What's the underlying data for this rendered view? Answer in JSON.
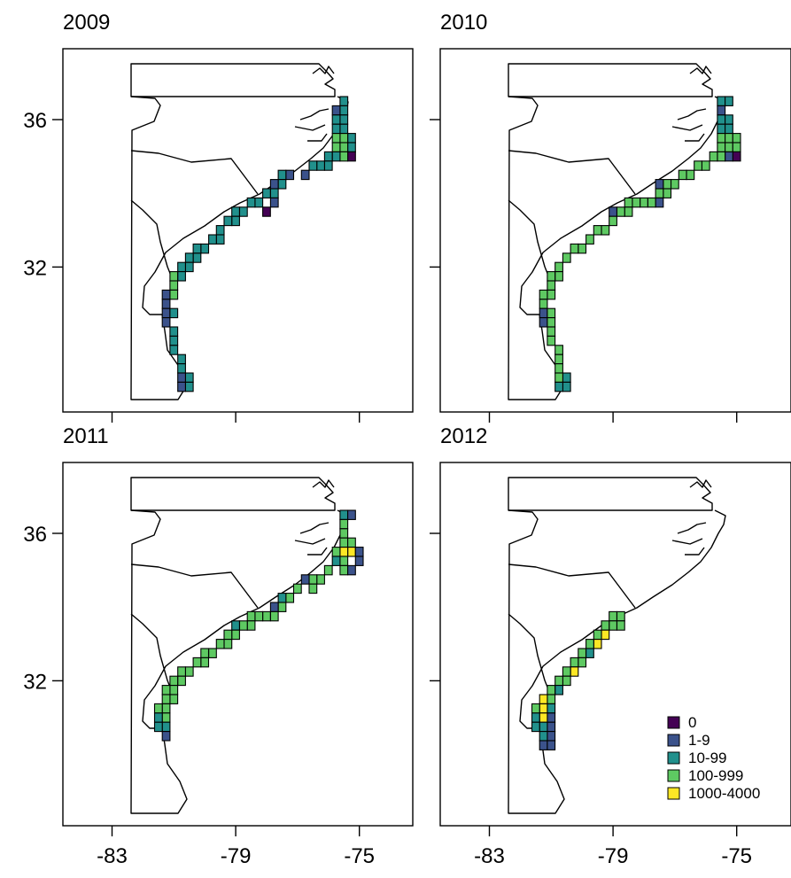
{
  "figure": {
    "panels": [
      {
        "title": "2009"
      },
      {
        "title": "2010"
      },
      {
        "title": "2011"
      },
      {
        "title": "2012"
      }
    ],
    "y_tick_labels": [
      "36",
      "32"
    ],
    "x_tick_labels": [
      "-83",
      "-79",
      "-75"
    ],
    "legend": {
      "items": [
        {
          "label": "0",
          "color": "#440154"
        },
        {
          "label": "1-9",
          "color": "#3b528b"
        },
        {
          "label": "10-99",
          "color": "#21908c"
        },
        {
          "label": "100-999",
          "color": "#5ec962"
        },
        {
          "label": "1000-4000",
          "color": "#fde725"
        }
      ]
    }
  },
  "chart_data": {
    "type": "heatmap",
    "description_units": "grid cells in degrees longitude (x) / latitude (y); value is abundance category index into legend",
    "xlim": [
      -84.5,
      -74
    ],
    "ylim": [
      28,
      38
    ],
    "x_ticks": [
      -83,
      -79,
      -75
    ],
    "y_ticks": [
      36,
      32
    ],
    "categories": [
      "0",
      "1-9",
      "10-99",
      "100-999",
      "1000-4000"
    ],
    "panels": [
      {
        "title": "2009",
        "cells": [
          [
            -75.5,
            36.5,
            2
          ],
          [
            -75.5,
            36.25,
            2
          ],
          [
            -75.75,
            36.25,
            1
          ],
          [
            -75.5,
            36,
            2
          ],
          [
            -75.75,
            36,
            2
          ],
          [
            -75.5,
            35.75,
            2
          ],
          [
            -75.75,
            35.75,
            2
          ],
          [
            -75.25,
            35.5,
            2
          ],
          [
            -75.5,
            35.5,
            3
          ],
          [
            -75.75,
            35.5,
            3
          ],
          [
            -75.25,
            35.25,
            2
          ],
          [
            -75.5,
            35.25,
            3
          ],
          [
            -75.75,
            35.25,
            3
          ],
          [
            -75.25,
            35,
            0
          ],
          [
            -75.5,
            35,
            3
          ],
          [
            -75.75,
            35,
            2
          ],
          [
            -76,
            35,
            2
          ],
          [
            -76,
            34.75,
            2
          ],
          [
            -76.25,
            34.75,
            2
          ],
          [
            -76.5,
            34.75,
            2
          ],
          [
            -76.75,
            34.5,
            1
          ],
          [
            -77.25,
            34.5,
            1
          ],
          [
            -77.5,
            34.5,
            2
          ],
          [
            -77.5,
            34.25,
            2
          ],
          [
            -77.75,
            34.25,
            1
          ],
          [
            -77.75,
            34,
            2
          ],
          [
            -78,
            34,
            2
          ],
          [
            -77.75,
            33.75,
            1
          ],
          [
            -78,
            33.5,
            0
          ],
          [
            -78.25,
            33.75,
            2
          ],
          [
            -78.5,
            33.75,
            2
          ],
          [
            -78.75,
            33.5,
            2
          ],
          [
            -79,
            33.5,
            2
          ],
          [
            -79,
            33.25,
            2
          ],
          [
            -79.25,
            33.25,
            2
          ],
          [
            -79.5,
            33,
            2
          ],
          [
            -79.5,
            32.75,
            2
          ],
          [
            -79.75,
            32.75,
            2
          ],
          [
            -80,
            32.5,
            2
          ],
          [
            -80.25,
            32.5,
            2
          ],
          [
            -80.25,
            32.25,
            2
          ],
          [
            -80.5,
            32.25,
            2
          ],
          [
            -80.5,
            32,
            2
          ],
          [
            -80.75,
            32,
            2
          ],
          [
            -80.75,
            31.75,
            2
          ],
          [
            -81,
            31.75,
            3
          ],
          [
            -81,
            31.5,
            3
          ],
          [
            -81,
            31.25,
            3
          ],
          [
            -81.25,
            31.25,
            1
          ],
          [
            -81.25,
            31,
            1
          ],
          [
            -81.25,
            30.75,
            1
          ],
          [
            -81,
            30.75,
            2
          ],
          [
            -81.25,
            30.5,
            1
          ],
          [
            -81,
            30.25,
            2
          ],
          [
            -81,
            30,
            2
          ],
          [
            -81,
            29.75,
            2
          ],
          [
            -80.75,
            29.5,
            2
          ],
          [
            -80.75,
            29.25,
            2
          ],
          [
            -80.5,
            29,
            2
          ],
          [
            -80.75,
            29,
            1
          ],
          [
            -80.5,
            28.75,
            2
          ],
          [
            -80.75,
            28.75,
            1
          ]
        ]
      },
      {
        "title": "2010",
        "cells": [
          [
            -75.5,
            36.5,
            2
          ],
          [
            -75.25,
            36.5,
            2
          ],
          [
            -75.5,
            36.25,
            1
          ],
          [
            -75.5,
            36,
            2
          ],
          [
            -75.25,
            36,
            2
          ],
          [
            -75.5,
            35.75,
            2
          ],
          [
            -75.25,
            35.75,
            2
          ],
          [
            -75.5,
            35.5,
            3
          ],
          [
            -75.25,
            35.5,
            3
          ],
          [
            -75,
            35.5,
            3
          ],
          [
            -75.5,
            35.25,
            3
          ],
          [
            -75.25,
            35.25,
            3
          ],
          [
            -75,
            35.25,
            3
          ],
          [
            -75,
            35,
            0
          ],
          [
            -75.25,
            35,
            1
          ],
          [
            -75.5,
            35,
            3
          ],
          [
            -75.75,
            35,
            3
          ],
          [
            -76,
            34.75,
            3
          ],
          [
            -76.25,
            34.75,
            3
          ],
          [
            -76.5,
            34.5,
            3
          ],
          [
            -76.75,
            34.5,
            3
          ],
          [
            -77,
            34.25,
            3
          ],
          [
            -77.25,
            34.25,
            3
          ],
          [
            -77.5,
            34.25,
            1
          ],
          [
            -77.25,
            34,
            3
          ],
          [
            -77.5,
            34,
            3
          ],
          [
            -77.5,
            33.75,
            1
          ],
          [
            -77.75,
            33.75,
            3
          ],
          [
            -78,
            33.75,
            3
          ],
          [
            -78.25,
            33.75,
            3
          ],
          [
            -78.5,
            33.75,
            3
          ],
          [
            -78.5,
            33.5,
            3
          ],
          [
            -78.75,
            33.5,
            3
          ],
          [
            -79,
            33.5,
            1
          ],
          [
            -79,
            33.25,
            3
          ],
          [
            -79.25,
            33,
            3
          ],
          [
            -79.5,
            33,
            3
          ],
          [
            -79.75,
            32.75,
            3
          ],
          [
            -80,
            32.5,
            3
          ],
          [
            -80.25,
            32.5,
            3
          ],
          [
            -80.5,
            32.25,
            3
          ],
          [
            -80.75,
            32,
            3
          ],
          [
            -80.75,
            31.75,
            3
          ],
          [
            -81,
            31.75,
            3
          ],
          [
            -81,
            31.5,
            3
          ],
          [
            -81,
            31.25,
            3
          ],
          [
            -81.25,
            31.25,
            3
          ],
          [
            -81.25,
            31,
            3
          ],
          [
            -81.25,
            30.75,
            1
          ],
          [
            -81,
            30.75,
            3
          ],
          [
            -81.25,
            30.5,
            1
          ],
          [
            -81,
            30.5,
            3
          ],
          [
            -81,
            30.25,
            3
          ],
          [
            -81,
            30,
            3
          ],
          [
            -80.75,
            29.75,
            3
          ],
          [
            -80.75,
            29.5,
            3
          ],
          [
            -80.75,
            29.25,
            3
          ],
          [
            -80.5,
            29,
            2
          ],
          [
            -80.75,
            29,
            3
          ],
          [
            -80.5,
            28.75,
            2
          ],
          [
            -80.75,
            28.75,
            2
          ]
        ]
      },
      {
        "title": "2011",
        "cells": [
          [
            -75.5,
            36.5,
            2
          ],
          [
            -75.25,
            36.5,
            1
          ],
          [
            -75.5,
            36.25,
            3
          ],
          [
            -75.5,
            36,
            3
          ],
          [
            -75.5,
            35.75,
            3
          ],
          [
            -75.25,
            35.75,
            3
          ],
          [
            -75.25,
            35.5,
            4
          ],
          [
            -75,
            35.5,
            1
          ],
          [
            -75.5,
            35.5,
            4
          ],
          [
            -75.75,
            35.5,
            3
          ],
          [
            -75.5,
            35.25,
            3
          ],
          [
            -75.75,
            35.25,
            2
          ],
          [
            -75,
            35.25,
            1
          ],
          [
            -75.5,
            35,
            3
          ],
          [
            -75.25,
            35,
            1
          ],
          [
            -76,
            35,
            3
          ],
          [
            -76.25,
            34.75,
            3
          ],
          [
            -76.5,
            34.75,
            3
          ],
          [
            -76.75,
            34.75,
            1
          ],
          [
            -76.5,
            34.5,
            3
          ],
          [
            -77,
            34.5,
            3
          ],
          [
            -77.25,
            34.25,
            3
          ],
          [
            -77.5,
            34.25,
            2
          ],
          [
            -77.5,
            34,
            3
          ],
          [
            -77.75,
            34,
            1
          ],
          [
            -77.75,
            33.75,
            3
          ],
          [
            -78,
            33.75,
            3
          ],
          [
            -78.25,
            33.75,
            3
          ],
          [
            -78.5,
            33.75,
            3
          ],
          [
            -78.5,
            33.5,
            3
          ],
          [
            -78.75,
            33.5,
            3
          ],
          [
            -79,
            33.5,
            2
          ],
          [
            -79,
            33.25,
            3
          ],
          [
            -79.25,
            33.25,
            3
          ],
          [
            -79.25,
            33,
            3
          ],
          [
            -79.5,
            33,
            3
          ],
          [
            -79.75,
            32.75,
            3
          ],
          [
            -80,
            32.75,
            3
          ],
          [
            -80,
            32.5,
            3
          ],
          [
            -80.25,
            32.5,
            3
          ],
          [
            -80.5,
            32.25,
            3
          ],
          [
            -80.75,
            32.25,
            3
          ],
          [
            -80.75,
            32,
            3
          ],
          [
            -81,
            32,
            3
          ],
          [
            -81,
            31.75,
            3
          ],
          [
            -81.25,
            31.75,
            3
          ],
          [
            -81,
            31.5,
            3
          ],
          [
            -81.25,
            31.5,
            3
          ],
          [
            -81.25,
            31.25,
            3
          ],
          [
            -81.5,
            31.25,
            3
          ],
          [
            -81.25,
            31,
            3
          ],
          [
            -81.5,
            31,
            2
          ],
          [
            -81.25,
            30.75,
            2
          ],
          [
            -81.5,
            30.75,
            2
          ],
          [
            -81.25,
            30.5,
            1
          ]
        ]
      },
      {
        "title": "2012",
        "cells": [
          [
            -78.75,
            33.75,
            3
          ],
          [
            -79,
            33.75,
            3
          ],
          [
            -78.75,
            33.5,
            3
          ],
          [
            -79,
            33.5,
            3
          ],
          [
            -79.25,
            33.5,
            3
          ],
          [
            -79.25,
            33.25,
            4
          ],
          [
            -79.5,
            33.25,
            3
          ],
          [
            -79.5,
            33,
            4
          ],
          [
            -79.75,
            33,
            3
          ],
          [
            -79.75,
            32.75,
            2
          ],
          [
            -80,
            32.75,
            3
          ],
          [
            -80,
            32.5,
            3
          ],
          [
            -80.25,
            32.5,
            3
          ],
          [
            -80.25,
            32.25,
            4
          ],
          [
            -80.5,
            32.25,
            3
          ],
          [
            -80.5,
            32,
            3
          ],
          [
            -80.75,
            32,
            3
          ],
          [
            -80.75,
            31.75,
            2
          ],
          [
            -81,
            31.75,
            3
          ],
          [
            -81,
            31.5,
            3
          ],
          [
            -81.25,
            31.5,
            4
          ],
          [
            -81,
            31.25,
            2
          ],
          [
            -81.25,
            31.25,
            4
          ],
          [
            -81.5,
            31.25,
            3
          ],
          [
            -81,
            31,
            1
          ],
          [
            -81.25,
            31,
            4
          ],
          [
            -81.5,
            31,
            2
          ],
          [
            -81,
            30.75,
            1
          ],
          [
            -81.25,
            30.75,
            2
          ],
          [
            -81.5,
            30.75,
            2
          ],
          [
            -81,
            30.5,
            1
          ],
          [
            -81.25,
            30.5,
            2
          ],
          [
            -81.25,
            30.25,
            1
          ],
          [
            -81,
            30.25,
            1
          ]
        ]
      }
    ]
  }
}
